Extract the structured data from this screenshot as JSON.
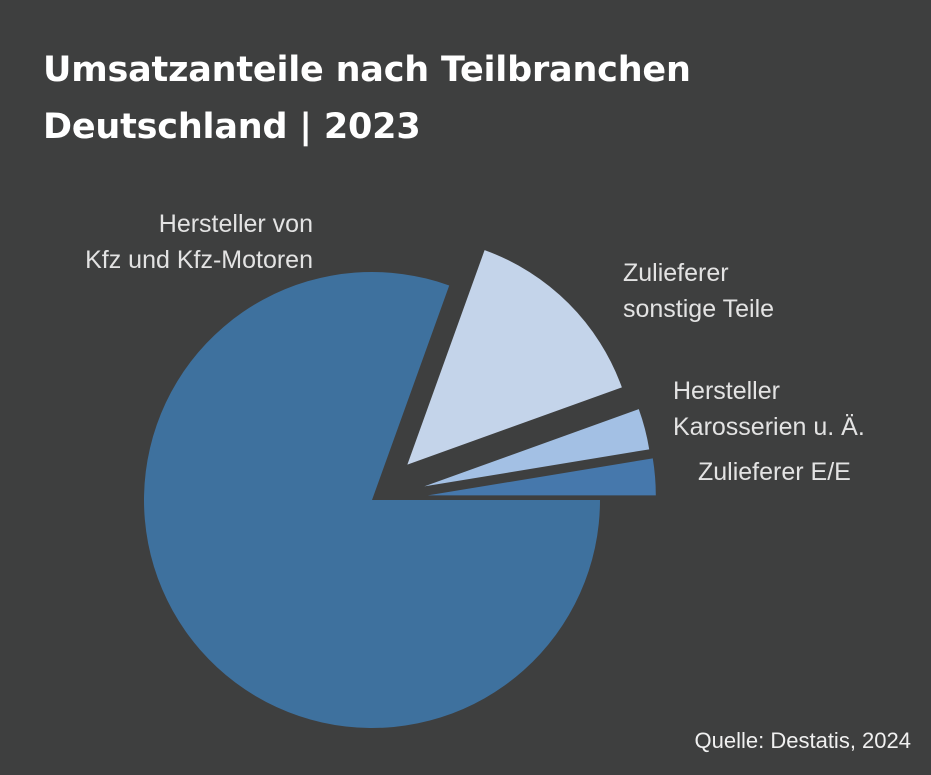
{
  "chart_data": {
    "type": "pie",
    "title": [
      "Umsatzanteile nach Teilbranchen",
      "Deutschland | 2023"
    ],
    "categories": [
      "Hersteller von Kfz und Kfz-Motoren",
      "Zulieferer sonstige Teile",
      "Hersteller Karosserien u. Ä.",
      "Zulieferer E/E"
    ],
    "values": [
      80.5,
      14.0,
      2.9,
      2.6
    ],
    "unit": "%",
    "exploded": true,
    "slices": [
      {
        "label_lines": [
          "Hersteller von",
          "Kfz und Kfz-Motoren"
        ],
        "value": 80.5,
        "color": "#3e719e"
      },
      {
        "label_lines": [
          "Zulieferer",
          "sonstige Teile"
        ],
        "value": 14.0,
        "color": "#c4d4ea"
      },
      {
        "label_lines": [
          "Hersteller",
          "Karosserien u. Ä."
        ],
        "value": 2.9,
        "color": "#a3c0e4"
      },
      {
        "label_lines": [
          "Zulieferer E/E"
        ],
        "value": 2.6,
        "color": "#4678ac"
      }
    ],
    "source": "Quelle: Destatis, 2024"
  },
  "colors": {
    "background": "#3e3f3f",
    "title": "#ffffff",
    "label": "#e3e3e3"
  }
}
